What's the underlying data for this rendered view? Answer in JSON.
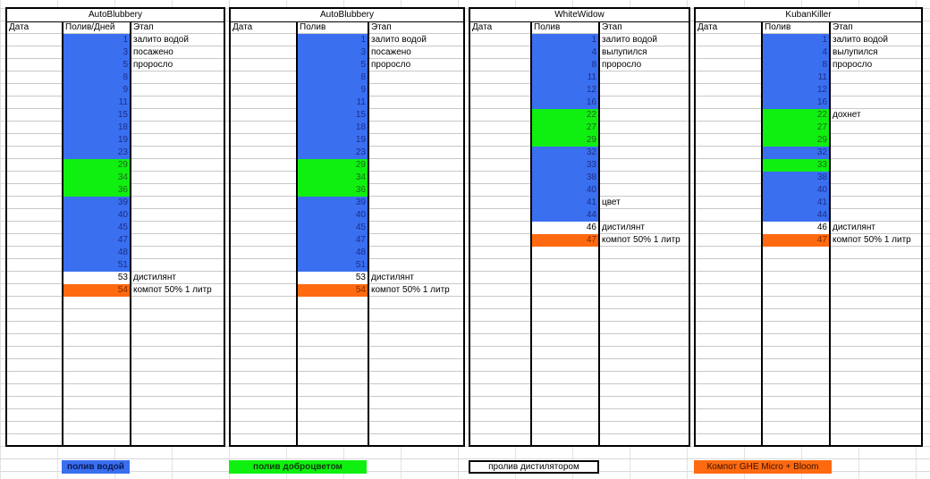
{
  "tables": [
    {
      "title": "AutoBlubbery",
      "headers": {
        "date": "Дата",
        "water": "Полив/Дней",
        "stage": "Этап"
      },
      "rows": [
        {
          "n": "1",
          "c": "blue",
          "s": "залито водой"
        },
        {
          "n": "3",
          "c": "blue",
          "s": "посажено"
        },
        {
          "n": "5",
          "c": "blue",
          "s": "проросло"
        },
        {
          "n": "8",
          "c": "blue",
          "s": ""
        },
        {
          "n": "9",
          "c": "blue",
          "s": ""
        },
        {
          "n": "11",
          "c": "blue",
          "s": ""
        },
        {
          "n": "15",
          "c": "blue",
          "s": ""
        },
        {
          "n": "18",
          "c": "blue",
          "s": ""
        },
        {
          "n": "19",
          "c": "blue",
          "s": ""
        },
        {
          "n": "23",
          "c": "blue",
          "s": ""
        },
        {
          "n": "29",
          "c": "green",
          "s": ""
        },
        {
          "n": "34",
          "c": "green",
          "s": ""
        },
        {
          "n": "36",
          "c": "green",
          "s": ""
        },
        {
          "n": "39",
          "c": "blue",
          "s": ""
        },
        {
          "n": "40",
          "c": "blue",
          "s": ""
        },
        {
          "n": "45",
          "c": "blue",
          "s": ""
        },
        {
          "n": "47",
          "c": "blue",
          "s": ""
        },
        {
          "n": "48",
          "c": "blue",
          "s": ""
        },
        {
          "n": "51",
          "c": "blue",
          "s": ""
        },
        {
          "n": "53",
          "c": "white",
          "s": "дистилянт"
        },
        {
          "n": "54",
          "c": "orange",
          "s": "компот 50% 1 литр"
        }
      ]
    },
    {
      "title": "AutoBlubbery",
      "headers": {
        "date": "Дата",
        "water": "Полив",
        "stage": "Этап"
      },
      "rows": [
        {
          "n": "1",
          "c": "blue",
          "s": "залито водой"
        },
        {
          "n": "3",
          "c": "blue",
          "s": "посажено"
        },
        {
          "n": "5",
          "c": "blue",
          "s": "проросло"
        },
        {
          "n": "8",
          "c": "blue",
          "s": ""
        },
        {
          "n": "9",
          "c": "blue",
          "s": ""
        },
        {
          "n": "11",
          "c": "blue",
          "s": ""
        },
        {
          "n": "15",
          "c": "blue",
          "s": ""
        },
        {
          "n": "18",
          "c": "blue",
          "s": ""
        },
        {
          "n": "19",
          "c": "blue",
          "s": ""
        },
        {
          "n": "23",
          "c": "blue",
          "s": ""
        },
        {
          "n": "29",
          "c": "green",
          "s": ""
        },
        {
          "n": "34",
          "c": "green",
          "s": ""
        },
        {
          "n": "36",
          "c": "green",
          "s": ""
        },
        {
          "n": "39",
          "c": "blue",
          "s": ""
        },
        {
          "n": "40",
          "c": "blue",
          "s": ""
        },
        {
          "n": "45",
          "c": "blue",
          "s": ""
        },
        {
          "n": "47",
          "c": "blue",
          "s": ""
        },
        {
          "n": "48",
          "c": "blue",
          "s": ""
        },
        {
          "n": "51",
          "c": "blue",
          "s": ""
        },
        {
          "n": "53",
          "c": "white",
          "s": "дистилянт"
        },
        {
          "n": "54",
          "c": "orange",
          "s": "компот 50% 1 литр"
        }
      ]
    },
    {
      "title": "WhiteWidow",
      "headers": {
        "date": "Дата",
        "water": "Полив",
        "stage": "Этап"
      },
      "rows": [
        {
          "n": "1",
          "c": "blue",
          "s": "залито водой"
        },
        {
          "n": "4",
          "c": "blue",
          "s": "вылупился"
        },
        {
          "n": "8",
          "c": "blue",
          "s": "проросло"
        },
        {
          "n": "11",
          "c": "blue",
          "s": ""
        },
        {
          "n": "12",
          "c": "blue",
          "s": ""
        },
        {
          "n": "16",
          "c": "blue",
          "s": ""
        },
        {
          "n": "22",
          "c": "green",
          "s": ""
        },
        {
          "n": "27",
          "c": "green",
          "s": ""
        },
        {
          "n": "29",
          "c": "green",
          "s": ""
        },
        {
          "n": "32",
          "c": "blue",
          "s": ""
        },
        {
          "n": "33",
          "c": "blue",
          "s": ""
        },
        {
          "n": "38",
          "c": "blue",
          "s": ""
        },
        {
          "n": "40",
          "c": "blue",
          "s": ""
        },
        {
          "n": "41",
          "c": "blue",
          "s": "цвет"
        },
        {
          "n": "44",
          "c": "blue",
          "s": ""
        },
        {
          "n": "46",
          "c": "white",
          "s": "дистилянт"
        },
        {
          "n": "47",
          "c": "orange",
          "s": "компот 50% 1 литр"
        }
      ]
    },
    {
      "title": "KubanKiller",
      "headers": {
        "date": "Дата",
        "water": "Полив",
        "stage": "Этап"
      },
      "rows": [
        {
          "n": "1",
          "c": "blue",
          "s": "залито водой"
        },
        {
          "n": "4",
          "c": "blue",
          "s": "вылупился"
        },
        {
          "n": "8",
          "c": "blue",
          "s": "проросло"
        },
        {
          "n": "11",
          "c": "blue",
          "s": ""
        },
        {
          "n": "12",
          "c": "blue",
          "s": ""
        },
        {
          "n": "16",
          "c": "blue",
          "s": ""
        },
        {
          "n": "22",
          "c": "green",
          "s": "дохнет"
        },
        {
          "n": "27",
          "c": "green",
          "s": ""
        },
        {
          "n": "29",
          "c": "green",
          "s": ""
        },
        {
          "n": "32",
          "c": "blue",
          "s": ""
        },
        {
          "n": "33",
          "c": "green",
          "s": ""
        },
        {
          "n": "38",
          "c": "blue",
          "s": ""
        },
        {
          "n": "40",
          "c": "blue",
          "s": ""
        },
        {
          "n": "41",
          "c": "blue",
          "s": ""
        },
        {
          "n": "44",
          "c": "blue",
          "s": ""
        },
        {
          "n": "46",
          "c": "white",
          "s": "дистилянт"
        },
        {
          "n": "47",
          "c": "orange",
          "s": "компот 50% 1 литр"
        }
      ]
    }
  ],
  "legend": [
    {
      "label": "полив водой",
      "color": "#3a6ff0"
    },
    {
      "label": "полив доброцветом",
      "color": "#10f010"
    },
    {
      "label": "пролив дистилятором",
      "color": "#ffffff"
    },
    {
      "label": "Компот GHE Micro + Bloom",
      "color": "#ff6a10"
    }
  ]
}
